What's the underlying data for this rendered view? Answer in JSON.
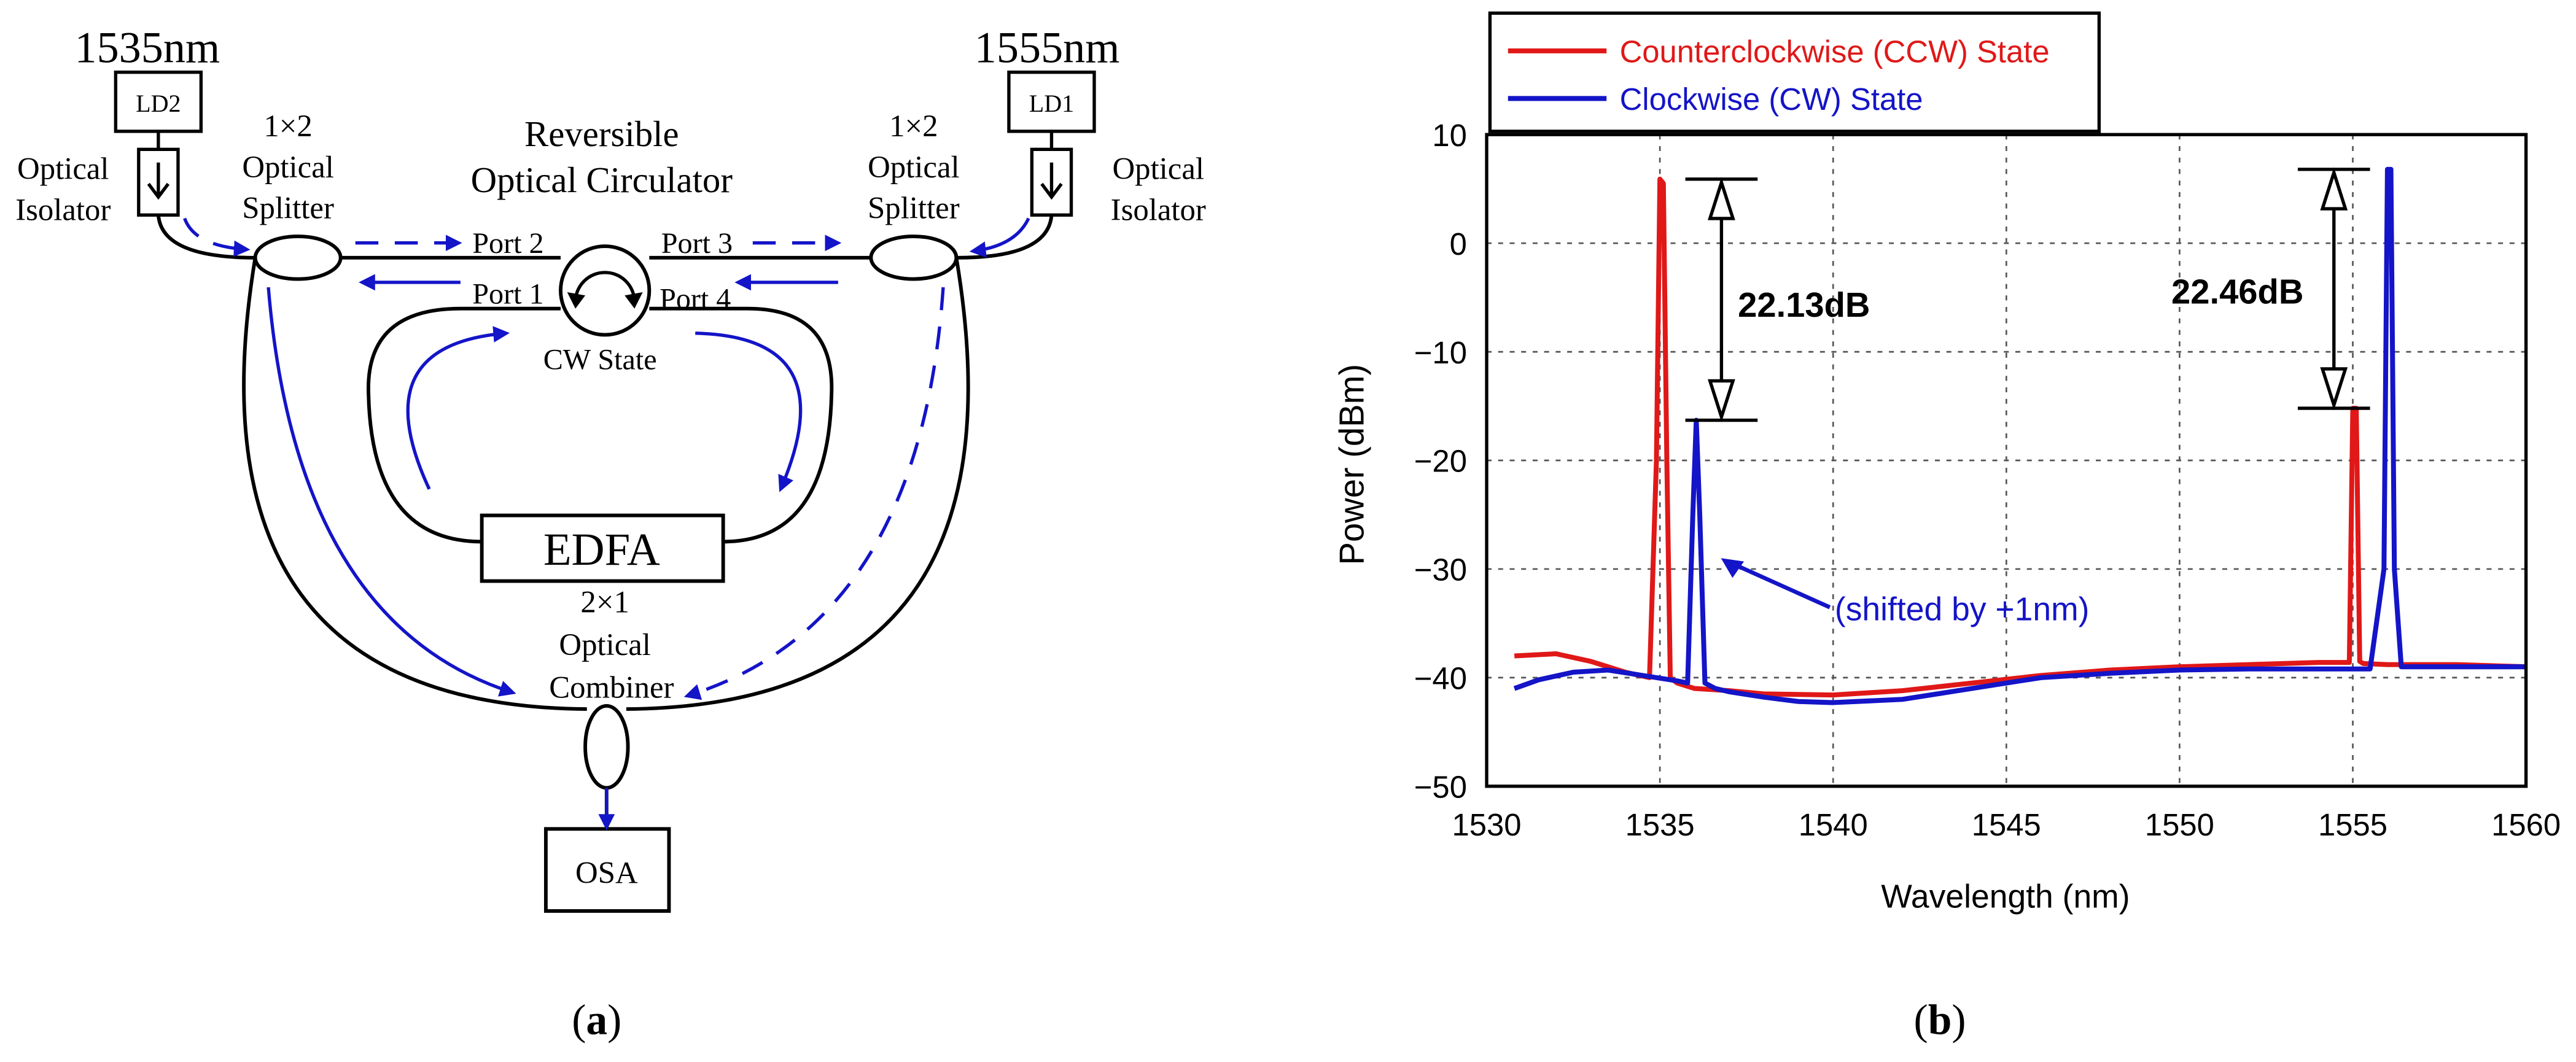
{
  "panel_a": {
    "caption_letter": "a",
    "sources": {
      "left_wavelength": "1535nm",
      "right_wavelength": "1555nm",
      "left_laser": "LD2",
      "right_laser": "LD1"
    },
    "isolator_label": [
      "Optical",
      "Isolator"
    ],
    "splitter_label": [
      "1×2",
      "Optical",
      "Splitter"
    ],
    "circulator_label": [
      "Reversible",
      "Optical Circulator"
    ],
    "ports": {
      "p1": "Port 1",
      "p2": "Port 2",
      "p3": "Port 3",
      "p4": "Port 4"
    },
    "state_label": "CW State",
    "amplifier": "EDFA",
    "combiner_label": [
      "2×1",
      "Optical",
      "Combiner"
    ],
    "analyzer": "OSA"
  },
  "panel_b": {
    "caption_letter": "b",
    "annotations": {
      "left_gap": "22.13dB",
      "right_gap": "22.46dB",
      "shift_note": "(shifted by +1nm)"
    }
  },
  "colors": {
    "ccw": "#e01818",
    "cw": "#1414c8"
  },
  "chart_data": {
    "type": "line",
    "title": "",
    "xlabel": "Wavelength (nm)",
    "ylabel": "Power (dBm)",
    "xlim": [
      1530,
      1560
    ],
    "ylim": [
      -50,
      10
    ],
    "xticks": [
      1530,
      1535,
      1540,
      1545,
      1550,
      1555,
      1560
    ],
    "yticks": [
      10,
      0,
      -10,
      -20,
      -30,
      -40,
      -50
    ],
    "grid": true,
    "legend_position": "top-left outside",
    "series": [
      {
        "name": "Counterclockwise (CCW) State",
        "color": "#e01818",
        "x": [
          1530.8,
          1532,
          1533,
          1534,
          1534.7,
          1534.9,
          1535.0,
          1535.1,
          1535.2,
          1535.3,
          1535.5,
          1536,
          1537,
          1538,
          1540,
          1542,
          1544,
          1546,
          1548,
          1550,
          1552,
          1554,
          1554.9,
          1555.0,
          1555.1,
          1555.2,
          1555.3,
          1556,
          1558,
          1560
        ],
        "values": [
          -38,
          -37.8,
          -38.5,
          -39.5,
          -40,
          -20,
          5.9,
          5.5,
          -20,
          -40,
          -40.5,
          -41,
          -41.2,
          -41.5,
          -41.6,
          -41.2,
          -40.5,
          -39.8,
          -39.3,
          -39,
          -38.8,
          -38.6,
          -38.6,
          -15.2,
          -15.2,
          -38.5,
          -38.7,
          -38.8,
          -38.8,
          -39
        ]
      },
      {
        "name": "Clockwise (CW) State",
        "color": "#1414c8",
        "x": [
          1530.8,
          1531.5,
          1532.5,
          1533.5,
          1534.5,
          1535.5,
          1535.8,
          1535.95,
          1536.05,
          1536.15,
          1536.3,
          1536.6,
          1537,
          1538,
          1539,
          1540,
          1542,
          1544,
          1546,
          1548,
          1550,
          1552,
          1554,
          1555.5,
          1555.9,
          1556.0,
          1556.1,
          1556.2,
          1556.4,
          1557,
          1558,
          1560
        ],
        "values": [
          -41,
          -40.2,
          -39.5,
          -39.3,
          -39.8,
          -40.3,
          -40.5,
          -25,
          -16.3,
          -25,
          -40.5,
          -41,
          -41.3,
          -41.8,
          -42.2,
          -42.3,
          -42,
          -41,
          -40,
          -39.6,
          -39.3,
          -39.2,
          -39.2,
          -39.2,
          -30,
          6.8,
          6.8,
          -30,
          -39,
          -39,
          -39,
          -39
        ]
      }
    ],
    "annotations": [
      {
        "text": "22.13dB",
        "from_y": 5.9,
        "to_y": -16.3
      },
      {
        "text": "22.46dB",
        "from_y": 6.8,
        "to_y": -15.2
      },
      {
        "text": "(shifted by +1nm)",
        "points_to_x": 1536.1
      }
    ]
  }
}
